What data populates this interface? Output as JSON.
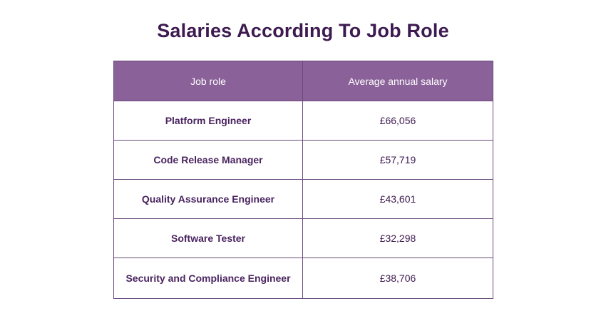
{
  "title": "Salaries According To Job Role",
  "colors": {
    "header_bg": "#8a6198",
    "title_text": "#3d1a4f",
    "border": "#6a4a7c"
  },
  "table": {
    "headers": [
      "Job role",
      "Average annual salary"
    ],
    "rows": [
      {
        "role": "Platform Engineer",
        "salary": "£66,056"
      },
      {
        "role": "Code Release Manager",
        "salary": "£57,719"
      },
      {
        "role": "Quality Assurance Engineer",
        "salary": "£43,601"
      },
      {
        "role": "Software Tester",
        "salary": "£32,298"
      },
      {
        "role": "Security and Compliance Engineer",
        "salary": "£38,706"
      }
    ]
  }
}
